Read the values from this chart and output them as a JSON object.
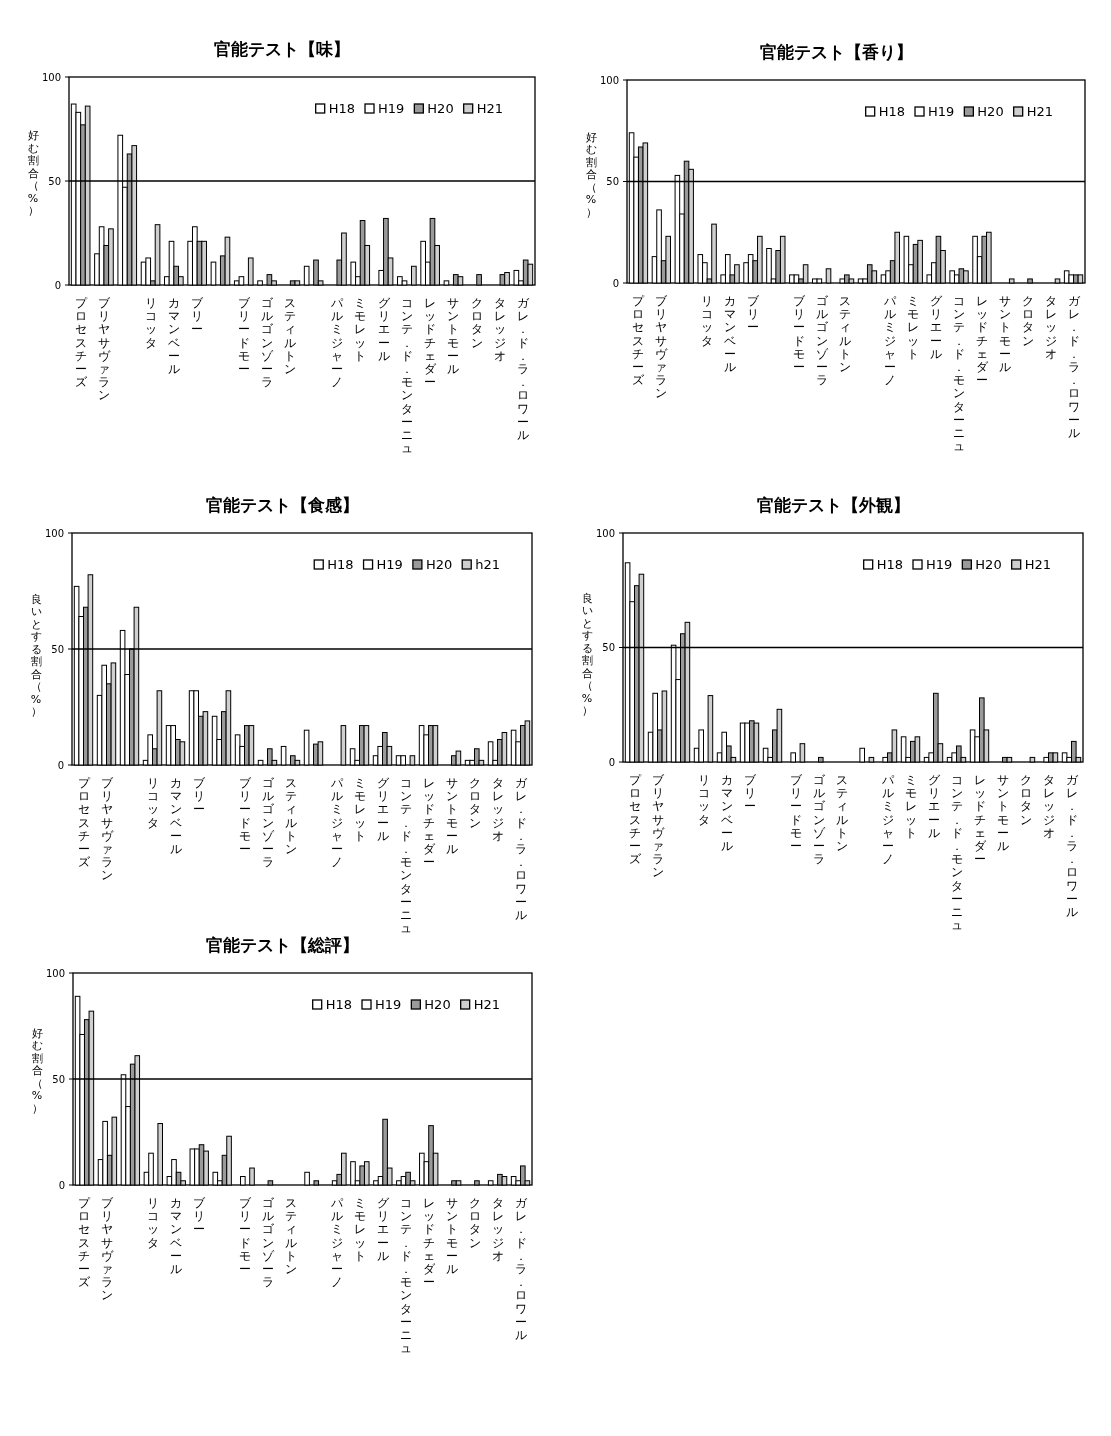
{
  "chart_data": [
    {
      "type": "bar",
      "title": "官能テスト【味】",
      "ylabel": "好む割合（%）",
      "ylim": [
        0,
        100
      ],
      "yticks": [
        0,
        50,
        100
      ],
      "legend": "top right",
      "ref_lines": [
        {
          "axis": "y",
          "value": 50,
          "color": "#000000"
        }
      ],
      "categories": [
        "プロセスチーズ",
        "ブリヤサヴァラン",
        null,
        "リコッタ",
        "カマンベール",
        "ブリー",
        null,
        "ブリードモー",
        "ゴルゴンゾーラ",
        "スティルトン",
        null,
        "パルミジャーノ",
        "ミモレット",
        "グリエール",
        "コンテ．ド．モンターニュ",
        "レッドチェダー",
        "サントモール",
        "クロタン",
        "タレッジオ",
        "ガレ．ド．ラ．ロワール"
      ],
      "series": [
        {
          "name": "H18",
          "color": "#ffffff",
          "values": [
            87,
            15,
            72,
            11,
            4,
            21,
            11,
            2,
            2,
            0,
            9,
            0,
            11,
            0,
            4,
            21,
            2,
            0,
            0,
            7
          ]
        },
        {
          "name": "H19",
          "color": "#ffffff",
          "values": [
            83,
            28,
            47,
            13,
            21,
            28,
            0,
            4,
            0,
            0,
            0,
            0,
            4,
            7,
            2,
            11,
            0,
            0,
            0,
            2
          ]
        },
        {
          "name": "H20",
          "color": "#9a9a9a",
          "values": [
            77,
            19,
            63,
            2,
            9,
            21,
            14,
            0,
            5,
            2,
            12,
            12,
            31,
            32,
            0,
            32,
            5,
            5,
            5,
            12
          ]
        },
        {
          "name": "H21",
          "color": "#cfcfcf",
          "values": [
            86,
            27,
            67,
            29,
            4,
            21,
            23,
            13,
            2,
            2,
            2,
            25,
            19,
            13,
            9,
            19,
            4,
            0,
            6,
            10
          ]
        }
      ]
    },
    {
      "type": "bar",
      "title": "官能テスト【香り】",
      "ylabel": "好む割合（%）",
      "ylim": [
        0,
        100
      ],
      "yticks": [
        0,
        50,
        100
      ],
      "legend": "top right",
      "ref_lines": [
        {
          "axis": "y",
          "value": 50,
          "color": "#000000"
        }
      ],
      "categories": [
        "プロセスチーズ",
        "ブリヤサヴァラン",
        null,
        "リコッタ",
        "カマンベール",
        "ブリー",
        null,
        "ブリードモー",
        "ゴルゴンゾーラ",
        "スティルトン",
        null,
        "パルミジャーノ",
        "ミモレット",
        "グリエール",
        "コンテ．ド．モンターニュ",
        "レッドチェダー",
        "サントモール",
        "クロタン",
        "タレッジオ",
        "ガレ．ド．ラ．ロワール"
      ],
      "series": [
        {
          "name": "H18",
          "color": "#ffffff",
          "values": [
            74,
            13,
            53,
            14,
            4,
            10,
            17,
            4,
            2,
            0,
            2,
            4,
            23,
            4,
            6,
            23,
            0,
            0,
            0,
            6
          ]
        },
        {
          "name": "H19",
          "color": "#ffffff",
          "values": [
            62,
            36,
            34,
            10,
            14,
            14,
            2,
            4,
            2,
            2,
            2,
            6,
            9,
            10,
            4,
            13,
            0,
            0,
            0,
            4
          ]
        },
        {
          "name": "H20",
          "color": "#9a9a9a",
          "values": [
            67,
            11,
            60,
            2,
            4,
            11,
            16,
            2,
            0,
            4,
            9,
            11,
            19,
            23,
            7,
            23,
            0,
            2,
            0,
            4
          ]
        },
        {
          "name": "H21",
          "color": "#cfcfcf",
          "values": [
            69,
            23,
            56,
            29,
            9,
            23,
            23,
            9,
            7,
            2,
            6,
            25,
            21,
            16,
            6,
            25,
            2,
            0,
            2,
            4
          ]
        }
      ]
    },
    {
      "type": "bar",
      "title": "官能テスト【食感】",
      "ylabel": "良いとする割合（%）",
      "ylim": [
        0,
        100
      ],
      "yticks": [
        0,
        50,
        100
      ],
      "legend": "top right",
      "ref_lines": [
        {
          "axis": "y",
          "value": 50,
          "color": "#000000"
        }
      ],
      "categories": [
        "プロセスチーズ",
        "ブリヤサヴァラン",
        null,
        "リコッタ",
        "カマンベール",
        "ブリー",
        null,
        "ブリードモー",
        "ゴルゴンゾーラ",
        "スティルトン",
        null,
        "パルミジャーノ",
        "ミモレット",
        "グリエール",
        "コンテ．ド．モンターニュ",
        "レッドチェダー",
        "サントモール",
        "クロタン",
        "タレッジオ",
        "ガレ．ド．ラ．ロワール"
      ],
      "series": [
        {
          "name": "H18",
          "color": "#ffffff",
          "values": [
            77,
            30,
            58,
            2,
            17,
            32,
            21,
            13,
            2,
            8,
            15,
            0,
            7,
            4,
            4,
            17,
            0,
            2,
            10,
            15
          ]
        },
        {
          "name": "H19",
          "color": "#ffffff",
          "values": [
            64,
            43,
            39,
            13,
            17,
            32,
            11,
            8,
            0,
            0,
            0,
            0,
            2,
            8,
            4,
            13,
            0,
            2,
            2,
            10
          ]
        },
        {
          "name": "H20",
          "color": "#9a9a9a",
          "values": [
            68,
            35,
            50,
            7,
            11,
            21,
            23,
            17,
            7,
            4,
            9,
            0,
            17,
            14,
            0,
            17,
            4,
            7,
            11,
            17
          ]
        },
        {
          "name": "h21",
          "color": "#cfcfcf",
          "values": [
            82,
            44,
            68,
            32,
            10,
            23,
            32,
            17,
            2,
            2,
            10,
            17,
            17,
            8,
            4,
            17,
            6,
            2,
            14,
            19
          ]
        }
      ]
    },
    {
      "type": "bar",
      "title": "官能テスト【外観】",
      "ylabel": "良いとする割合（%）",
      "ylim": [
        0,
        100
      ],
      "yticks": [
        0,
        50,
        100
      ],
      "legend": "top right",
      "ref_lines": [
        {
          "axis": "y",
          "value": 50,
          "color": "#000000"
        }
      ],
      "categories": [
        "プロセスチーズ",
        "ブリヤサヴァラン",
        null,
        "リコッタ",
        "カマンベール",
        "ブリー",
        null,
        "ブリードモー",
        "ゴルゴンゾーラ",
        "スティルトン",
        null,
        "パルミジャーノ",
        "ミモレット",
        "グリエール",
        "コンテ．ド．モンターニュ",
        "レッドチェダー",
        "サントモール",
        "クロタン",
        "タレッジオ",
        "ガレ．ド．ラ．ロワール"
      ],
      "series": [
        {
          "name": "H18",
          "color": "#ffffff",
          "values": [
            87,
            13,
            51,
            6,
            4,
            17,
            6,
            0,
            0,
            0,
            0,
            0,
            11,
            2,
            2,
            14,
            0,
            0,
            0,
            4
          ]
        },
        {
          "name": "H19",
          "color": "#ffffff",
          "values": [
            70,
            30,
            36,
            14,
            13,
            17,
            2,
            4,
            0,
            0,
            6,
            2,
            2,
            4,
            4,
            11,
            0,
            0,
            2,
            2
          ]
        },
        {
          "name": "H20",
          "color": "#9a9a9a",
          "values": [
            77,
            14,
            56,
            0,
            7,
            18,
            14,
            0,
            2,
            0,
            0,
            4,
            9,
            30,
            7,
            28,
            2,
            0,
            4,
            9
          ]
        },
        {
          "name": "H21",
          "color": "#cfcfcf",
          "values": [
            82,
            31,
            61,
            29,
            2,
            17,
            23,
            8,
            0,
            0,
            2,
            14,
            11,
            8,
            2,
            14,
            2,
            2,
            4,
            2
          ]
        }
      ]
    },
    {
      "type": "bar",
      "title": "官能テスト【総評】",
      "ylabel": "好む割合（%）",
      "ylim": [
        0,
        100
      ],
      "yticks": [
        0,
        50,
        100
      ],
      "legend": "top right",
      "ref_lines": [
        {
          "axis": "y",
          "value": 50,
          "color": "#000000"
        }
      ],
      "categories": [
        "プロセスチーズ",
        "ブリヤサヴァラン",
        null,
        "リコッタ",
        "カマンベール",
        "ブリー",
        null,
        "ブリードモー",
        "ゴルゴンゾーラ",
        "スティルトン",
        null,
        "パルミジャーノ",
        "ミモレット",
        "グリエール",
        "コンテ．ド．モンターニュ",
        "レッドチェダー",
        "サントモール",
        "クロタン",
        "タレッジオ",
        "ガレ．ド．ラ．ロワール"
      ],
      "series": [
        {
          "name": "H18",
          "color": "#ffffff",
          "values": [
            89,
            12,
            52,
            6,
            4,
            17,
            6,
            0,
            0,
            0,
            6,
            0,
            11,
            2,
            2,
            15,
            0,
            0,
            2,
            4
          ]
        },
        {
          "name": "H19",
          "color": "#ffffff",
          "values": [
            71,
            30,
            37,
            15,
            12,
            17,
            2,
            4,
            0,
            0,
            0,
            2,
            2,
            4,
            4,
            11,
            0,
            0,
            0,
            2
          ]
        },
        {
          "name": "H20",
          "color": "#9a9a9a",
          "values": [
            78,
            14,
            57,
            0,
            6,
            19,
            14,
            0,
            2,
            0,
            2,
            5,
            9,
            31,
            6,
            28,
            2,
            2,
            5,
            9
          ]
        },
        {
          "name": "H21",
          "color": "#cfcfcf",
          "values": [
            82,
            32,
            61,
            29,
            2,
            16,
            23,
            8,
            0,
            0,
            0,
            15,
            11,
            8,
            2,
            15,
            2,
            0,
            4,
            2
          ]
        }
      ]
    }
  ]
}
